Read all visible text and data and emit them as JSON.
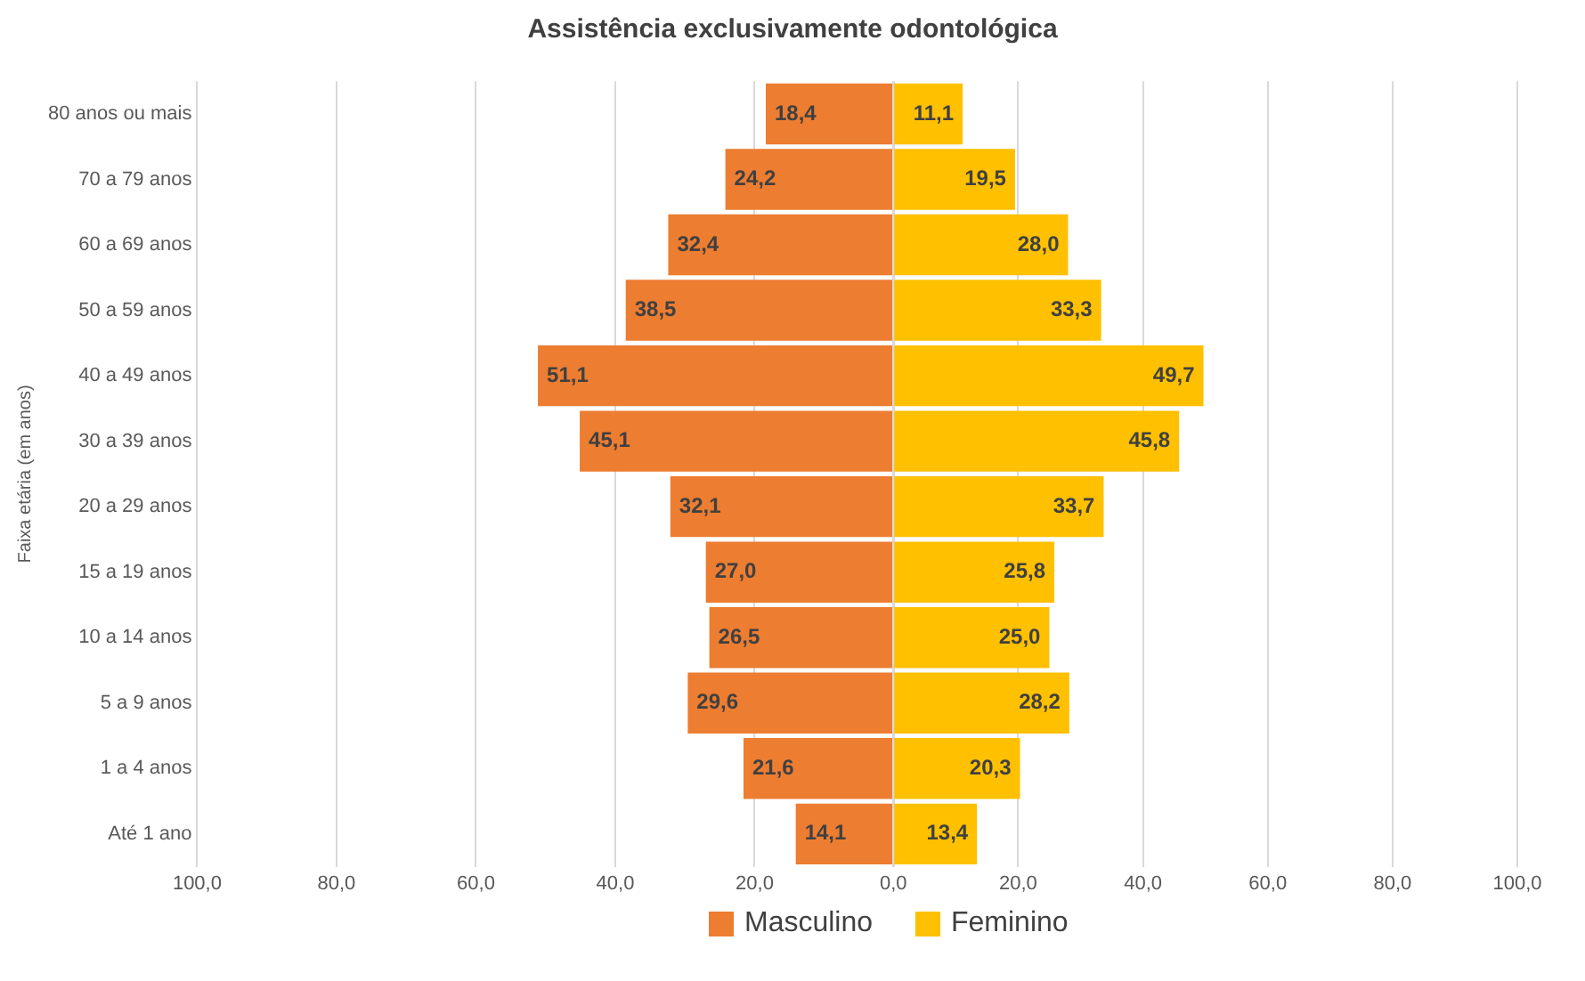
{
  "chart_data": [
    {
      "type": "bar",
      "orientation": "horizontal",
      "title": "Assistência exclusivamente odontológica",
      "ylabel": "Faixa etária (em anos)",
      "categories": [
        "80 anos ou mais",
        "70 a 79 anos",
        "60 a 69 anos",
        "50 a 59 anos",
        "40 a 49 anos",
        "30 a 39 anos",
        "20 a 29 anos",
        "15 a 19 anos",
        "10 a 14 anos",
        "5 a 9 anos",
        "1 a 4 anos",
        "Até 1 ano"
      ],
      "series": [
        {
          "name": "Masculino",
          "color": "#ed7d31",
          "values": [
            18.4,
            24.2,
            32.4,
            38.5,
            51.1,
            45.1,
            32.1,
            27.0,
            26.5,
            29.6,
            21.6,
            14.1
          ],
          "value_labels": [
            "18,4",
            "24,2",
            "32,4",
            "38,5",
            "51,1",
            "45,1",
            "32,1",
            "27,0",
            "26,5",
            "29,6",
            "21,6",
            "14,1"
          ]
        }
      ],
      "xlim": [
        100,
        0
      ],
      "xticks": [
        {
          "value": 100,
          "label": "100,0"
        },
        {
          "value": 80,
          "label": "80,0"
        },
        {
          "value": 60,
          "label": "60,0"
        },
        {
          "value": 40,
          "label": "40,0"
        },
        {
          "value": 20,
          "label": "20,0"
        },
        {
          "value": 0,
          "label": null
        }
      ],
      "grid": "x",
      "legend": "bottom"
    },
    {
      "type": "bar",
      "orientation": "horizontal",
      "categories": [
        null,
        null,
        null,
        null,
        null,
        null,
        null,
        null,
        null,
        null,
        null,
        null
      ],
      "series": [
        {
          "name": "Feminino",
          "color": "#ffc000",
          "values": [
            11.1,
            19.5,
            28.0,
            33.3,
            49.7,
            45.8,
            33.7,
            25.8,
            25.0,
            28.2,
            20.3,
            13.4
          ],
          "value_labels": [
            "11,1",
            "19,5",
            "28,0",
            "33,3",
            "49,7",
            "45,8",
            "33,7",
            "25,8",
            "25,0",
            "28,2",
            "20,3",
            "13,4"
          ]
        }
      ],
      "xlim": [
        0,
        100
      ],
      "xticks": [
        {
          "value": 0,
          "label": "0,0"
        },
        {
          "value": 20,
          "label": "20,0"
        },
        {
          "value": 40,
          "label": "40,0"
        },
        {
          "value": 60,
          "label": "60,0"
        },
        {
          "value": 80,
          "label": "80,0"
        },
        {
          "value": 100,
          "label": "100,0"
        }
      ],
      "grid": "x",
      "tick_labels": "x",
      "legend": "bottom"
    }
  ]
}
